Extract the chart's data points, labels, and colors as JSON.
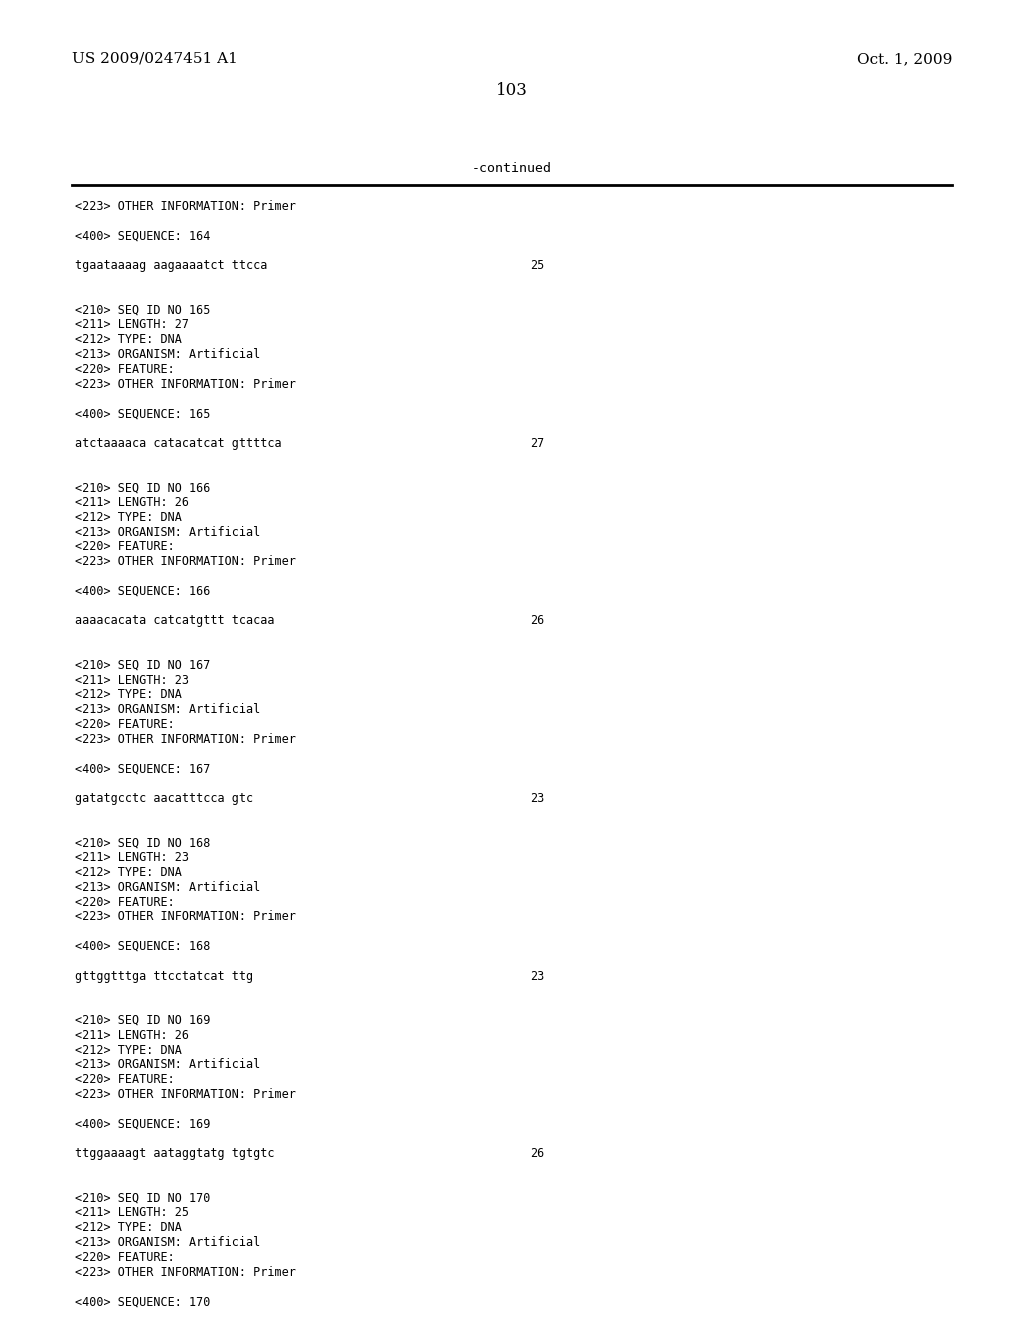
{
  "header_left": "US 2009/0247451 A1",
  "header_right": "Oct. 1, 2009",
  "page_number": "103",
  "continued_label": "-continued",
  "background_color": "#ffffff",
  "text_color": "#000000",
  "content_lines": [
    {
      "text": "<223> OTHER INFORMATION: Primer",
      "num": null
    },
    {
      "text": "",
      "num": null
    },
    {
      "text": "<400> SEQUENCE: 164",
      "num": null
    },
    {
      "text": "",
      "num": null
    },
    {
      "text": "tgaataaaag aagaaaatct ttcca",
      "num": "25"
    },
    {
      "text": "",
      "num": null
    },
    {
      "text": "",
      "num": null
    },
    {
      "text": "<210> SEQ ID NO 165",
      "num": null
    },
    {
      "text": "<211> LENGTH: 27",
      "num": null
    },
    {
      "text": "<212> TYPE: DNA",
      "num": null
    },
    {
      "text": "<213> ORGANISM: Artificial",
      "num": null
    },
    {
      "text": "<220> FEATURE:",
      "num": null
    },
    {
      "text": "<223> OTHER INFORMATION: Primer",
      "num": null
    },
    {
      "text": "",
      "num": null
    },
    {
      "text": "<400> SEQUENCE: 165",
      "num": null
    },
    {
      "text": "",
      "num": null
    },
    {
      "text": "atctaaaaca catacatcat gttttca",
      "num": "27"
    },
    {
      "text": "",
      "num": null
    },
    {
      "text": "",
      "num": null
    },
    {
      "text": "<210> SEQ ID NO 166",
      "num": null
    },
    {
      "text": "<211> LENGTH: 26",
      "num": null
    },
    {
      "text": "<212> TYPE: DNA",
      "num": null
    },
    {
      "text": "<213> ORGANISM: Artificial",
      "num": null
    },
    {
      "text": "<220> FEATURE:",
      "num": null
    },
    {
      "text": "<223> OTHER INFORMATION: Primer",
      "num": null
    },
    {
      "text": "",
      "num": null
    },
    {
      "text": "<400> SEQUENCE: 166",
      "num": null
    },
    {
      "text": "",
      "num": null
    },
    {
      "text": "aaaacacata catcatgttt tcacaa",
      "num": "26"
    },
    {
      "text": "",
      "num": null
    },
    {
      "text": "",
      "num": null
    },
    {
      "text": "<210> SEQ ID NO 167",
      "num": null
    },
    {
      "text": "<211> LENGTH: 23",
      "num": null
    },
    {
      "text": "<212> TYPE: DNA",
      "num": null
    },
    {
      "text": "<213> ORGANISM: Artificial",
      "num": null
    },
    {
      "text": "<220> FEATURE:",
      "num": null
    },
    {
      "text": "<223> OTHER INFORMATION: Primer",
      "num": null
    },
    {
      "text": "",
      "num": null
    },
    {
      "text": "<400> SEQUENCE: 167",
      "num": null
    },
    {
      "text": "",
      "num": null
    },
    {
      "text": "gatatgcctc aacatttcca gtc",
      "num": "23"
    },
    {
      "text": "",
      "num": null
    },
    {
      "text": "",
      "num": null
    },
    {
      "text": "<210> SEQ ID NO 168",
      "num": null
    },
    {
      "text": "<211> LENGTH: 23",
      "num": null
    },
    {
      "text": "<212> TYPE: DNA",
      "num": null
    },
    {
      "text": "<213> ORGANISM: Artificial",
      "num": null
    },
    {
      "text": "<220> FEATURE:",
      "num": null
    },
    {
      "text": "<223> OTHER INFORMATION: Primer",
      "num": null
    },
    {
      "text": "",
      "num": null
    },
    {
      "text": "<400> SEQUENCE: 168",
      "num": null
    },
    {
      "text": "",
      "num": null
    },
    {
      "text": "gttggtttga ttcctatcat ttg",
      "num": "23"
    },
    {
      "text": "",
      "num": null
    },
    {
      "text": "",
      "num": null
    },
    {
      "text": "<210> SEQ ID NO 169",
      "num": null
    },
    {
      "text": "<211> LENGTH: 26",
      "num": null
    },
    {
      "text": "<212> TYPE: DNA",
      "num": null
    },
    {
      "text": "<213> ORGANISM: Artificial",
      "num": null
    },
    {
      "text": "<220> FEATURE:",
      "num": null
    },
    {
      "text": "<223> OTHER INFORMATION: Primer",
      "num": null
    },
    {
      "text": "",
      "num": null
    },
    {
      "text": "<400> SEQUENCE: 169",
      "num": null
    },
    {
      "text": "",
      "num": null
    },
    {
      "text": "ttggaaaagt aataggtatg tgtgtc",
      "num": "26"
    },
    {
      "text": "",
      "num": null
    },
    {
      "text": "",
      "num": null
    },
    {
      "text": "<210> SEQ ID NO 170",
      "num": null
    },
    {
      "text": "<211> LENGTH: 25",
      "num": null
    },
    {
      "text": "<212> TYPE: DNA",
      "num": null
    },
    {
      "text": "<213> ORGANISM: Artificial",
      "num": null
    },
    {
      "text": "<220> FEATURE:",
      "num": null
    },
    {
      "text": "<223> OTHER INFORMATION: Primer",
      "num": null
    },
    {
      "text": "",
      "num": null
    },
    {
      "text": "<400> SEQUENCE: 170",
      "num": null
    }
  ]
}
